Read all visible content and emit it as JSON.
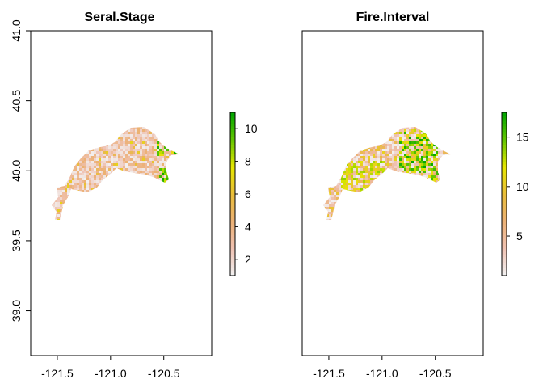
{
  "colors": {
    "ramp": [
      "#F2F2F2",
      "#EFC2B3",
      "#ECB176",
      "#E9BD3A",
      "#E6E600",
      "#63C600",
      "#00A600"
    ],
    "frame": "#000000"
  },
  "axes": {
    "x_ticks": [
      {
        "value": -121.5,
        "label": "-121.5"
      },
      {
        "value": -121.0,
        "label": "-121.0"
      },
      {
        "value": -120.5,
        "label": "-120.5"
      }
    ],
    "y_ticks": [
      {
        "value": 41.0,
        "label": "41.0"
      },
      {
        "value": 40.5,
        "label": "40.5"
      },
      {
        "value": 40.0,
        "label": "40.0"
      },
      {
        "value": 39.5,
        "label": "39.5"
      },
      {
        "value": 39.0,
        "label": "39.0"
      }
    ],
    "xlim": [
      -121.75,
      -120.05
    ],
    "ylim": [
      38.68,
      41.0
    ]
  },
  "chart_data": [
    {
      "type": "heatmap",
      "title": "Seral.Stage",
      "y_axis_visible": true,
      "legend": {
        "min": 1,
        "max": 11,
        "ticks": [
          {
            "value": 2,
            "label": "2"
          },
          {
            "value": 4,
            "label": "4"
          },
          {
            "value": 6,
            "label": "6"
          },
          {
            "value": 8,
            "label": "8"
          },
          {
            "value": 10,
            "label": "10"
          }
        ]
      }
    },
    {
      "type": "heatmap",
      "title": "Fire.Interval",
      "y_axis_visible": false,
      "legend": {
        "min": 1,
        "max": 17.5,
        "ticks": [
          {
            "value": 5,
            "label": "5"
          },
          {
            "value": 10,
            "label": "10"
          },
          {
            "value": 15,
            "label": "15"
          }
        ]
      }
    }
  ]
}
